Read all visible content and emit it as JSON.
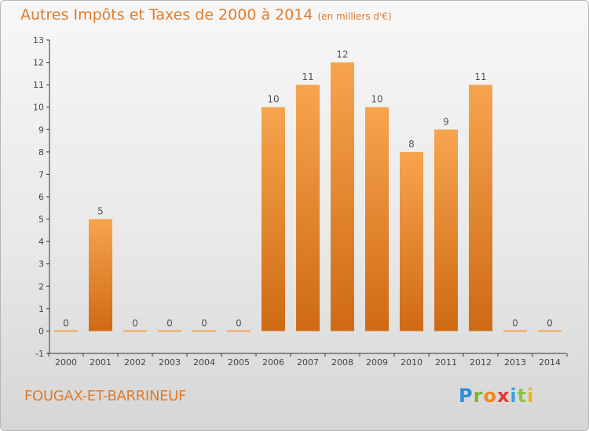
{
  "title": "Autres Impôts et Taxes de 2000 à 2014",
  "unit_note": "(en milliers d'€)",
  "commune": "FOUGAX-ET-BARRINEUF",
  "logo": "Proxiti",
  "colors": {
    "bar_top": "#f7a44e",
    "bar_bottom": "#cf6a14",
    "accent": "#e07b2a"
  },
  "chart_data": {
    "type": "bar",
    "title": "Autres Impôts et Taxes de 2000 à 2014",
    "xlabel": "",
    "ylabel": "",
    "categories": [
      "2000",
      "2001",
      "2002",
      "2003",
      "2004",
      "2005",
      "2006",
      "2007",
      "2008",
      "2009",
      "2010",
      "2011",
      "2012",
      "2013",
      "2014"
    ],
    "values": [
      0,
      5,
      0,
      0,
      0,
      0,
      10,
      11,
      12,
      10,
      8,
      9,
      11,
      0,
      0
    ],
    "ylim": [
      -1,
      13
    ],
    "yticks": [
      -1,
      0,
      1,
      2,
      3,
      4,
      5,
      6,
      7,
      8,
      9,
      10,
      11,
      12,
      13
    ],
    "grid": false
  }
}
